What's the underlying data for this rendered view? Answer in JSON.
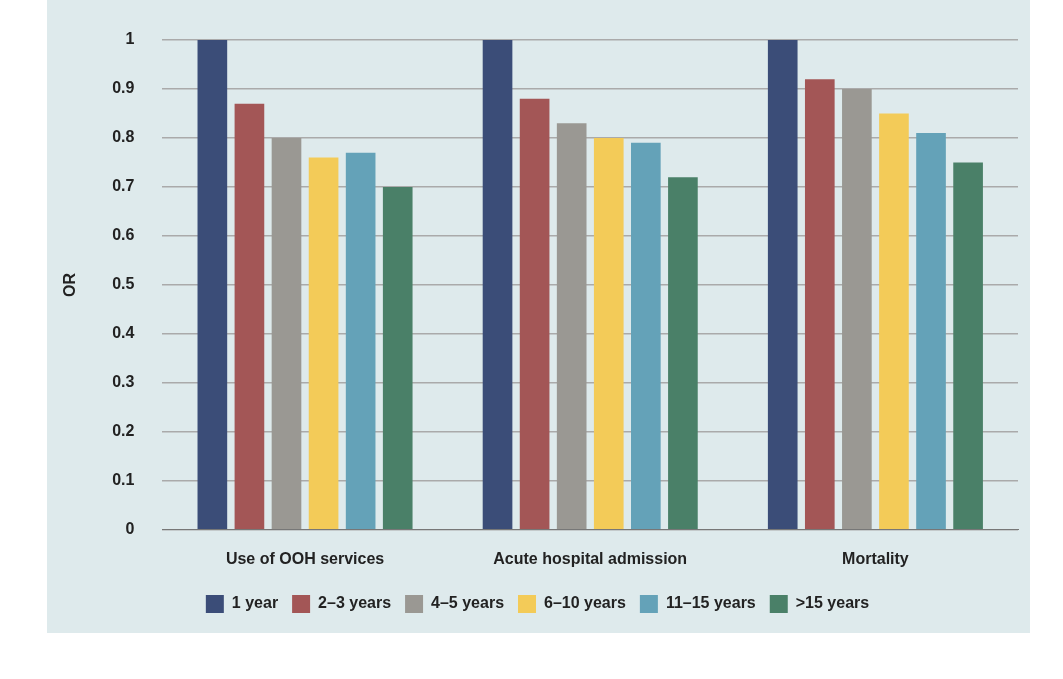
{
  "chart_data": {
    "type": "bar",
    "ylabel": "OR",
    "categories": [
      "Use of OOH services",
      "Acute hospital admission",
      "Mortality"
    ],
    "series": [
      {
        "name": "1 year",
        "color": "#3b4d78",
        "values": [
          1,
          1,
          1
        ]
      },
      {
        "name": "2–3 years",
        "color": "#a35656",
        "values": [
          0.87,
          0.88,
          0.92
        ]
      },
      {
        "name": "4–5 years",
        "color": "#9a9893",
        "values": [
          0.8,
          0.83,
          0.9
        ]
      },
      {
        "name": "6–10 years",
        "color": "#f3cb58",
        "values": [
          0.76,
          0.8,
          0.85
        ]
      },
      {
        "name": "11–15 years",
        "color": "#64a2b8",
        "values": [
          0.77,
          0.79,
          0.81
        ]
      },
      {
        "name": ">15 years",
        "color": "#4a8068",
        "values": [
          0.7,
          0.72,
          0.75
        ]
      }
    ],
    "ylim": [
      0,
      1
    ],
    "yticks": [
      0,
      0.1,
      0.2,
      0.3,
      0.4,
      0.5,
      0.6,
      0.7,
      0.8,
      0.9,
      1
    ],
    "grid": "y",
    "legend": "bottom"
  }
}
